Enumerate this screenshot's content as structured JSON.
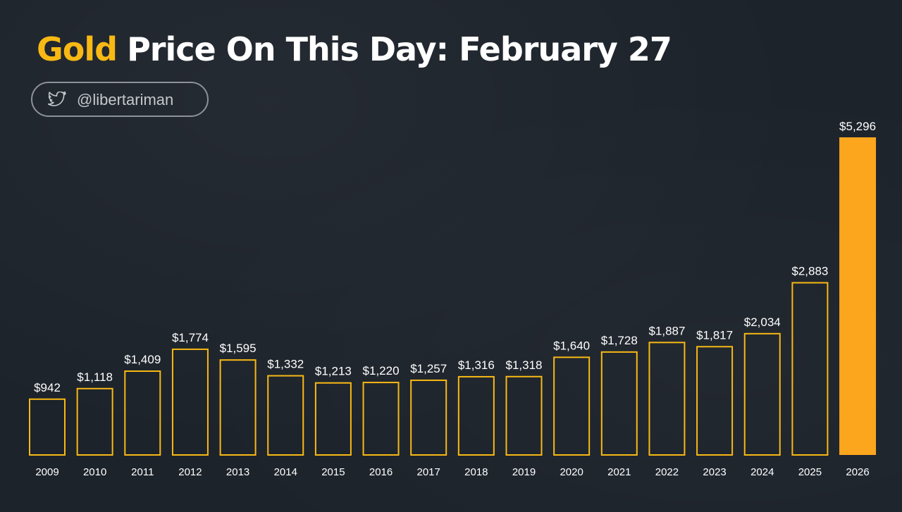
{
  "header": {
    "title_accent": "Gold",
    "title_rest": "Price On This Day: February 27"
  },
  "author": {
    "icon": "twitter-bird-icon",
    "handle": "@libertariman"
  },
  "colors": {
    "accent": "#f8b914",
    "highlight_bar": "#fca61e",
    "bar_outline": "#f8b914",
    "background": "#1d232b"
  },
  "chart_data": {
    "type": "bar",
    "title": "Price On This Day: February 27",
    "xlabel": "",
    "ylabel": "",
    "ylim": [
      0,
      5296
    ],
    "grid": false,
    "legend": "none",
    "categories": [
      "2009",
      "2010",
      "2011",
      "2012",
      "2013",
      "2014",
      "2015",
      "2016",
      "2017",
      "2018",
      "2019",
      "2020",
      "2021",
      "2022",
      "2023",
      "2024",
      "2025",
      "2026"
    ],
    "values": [
      942,
      1118,
      1409,
      1774,
      1595,
      1332,
      1213,
      1220,
      1257,
      1316,
      1318,
      1640,
      1728,
      1887,
      1817,
      2034,
      2883,
      5296
    ],
    "value_labels": [
      "$942",
      "$1,118",
      "$1,409",
      "$1,774",
      "$1,595",
      "$1,332",
      "$1,213",
      "$1,220",
      "$1,257",
      "$1,316",
      "$1,318",
      "$1,640",
      "$1,728",
      "$1,887",
      "$1,817",
      "$2,034",
      "$2,883",
      "$5,296"
    ],
    "highlighted_category": "2026"
  }
}
